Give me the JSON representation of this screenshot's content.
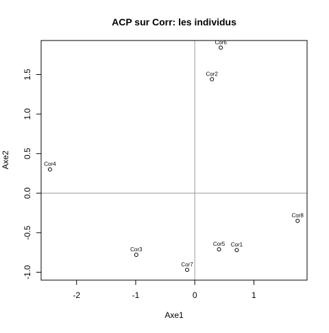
{
  "chart_data": {
    "type": "scatter",
    "title": "ACP sur Corr: les individus",
    "xlabel": "Axe1",
    "ylabel": "Axe2",
    "xlim": [
      -2.6,
      1.9
    ],
    "ylim": [
      -1.1,
      1.93
    ],
    "x_ticks": [
      -2,
      -1,
      0,
      1
    ],
    "x_tick_labels": [
      "-2",
      "-1",
      "0",
      "1"
    ],
    "y_ticks": [
      -1.0,
      -0.5,
      0.0,
      0.5,
      1.0,
      1.5
    ],
    "y_tick_labels": [
      "-1.0",
      "-0.5",
      "0.0",
      "0.5",
      "1.0",
      "1.5"
    ],
    "reference_lines": {
      "h": 0,
      "v": 0,
      "color": "#999999"
    },
    "grid": false,
    "point_style": "open-circle",
    "points": [
      {
        "label": "Cor1",
        "x": 0.71,
        "y": -0.72
      },
      {
        "label": "Cor2",
        "x": 0.29,
        "y": 1.44
      },
      {
        "label": "Cor3",
        "x": -0.99,
        "y": -0.78
      },
      {
        "label": "Cor4",
        "x": -2.45,
        "y": 0.3
      },
      {
        "label": "Cor5",
        "x": 0.41,
        "y": -0.71
      },
      {
        "label": "Cor6",
        "x": 0.44,
        "y": 1.84
      },
      {
        "label": "Cor7",
        "x": -0.13,
        "y": -0.97
      },
      {
        "label": "Cor8",
        "x": 1.74,
        "y": -0.35
      }
    ]
  }
}
